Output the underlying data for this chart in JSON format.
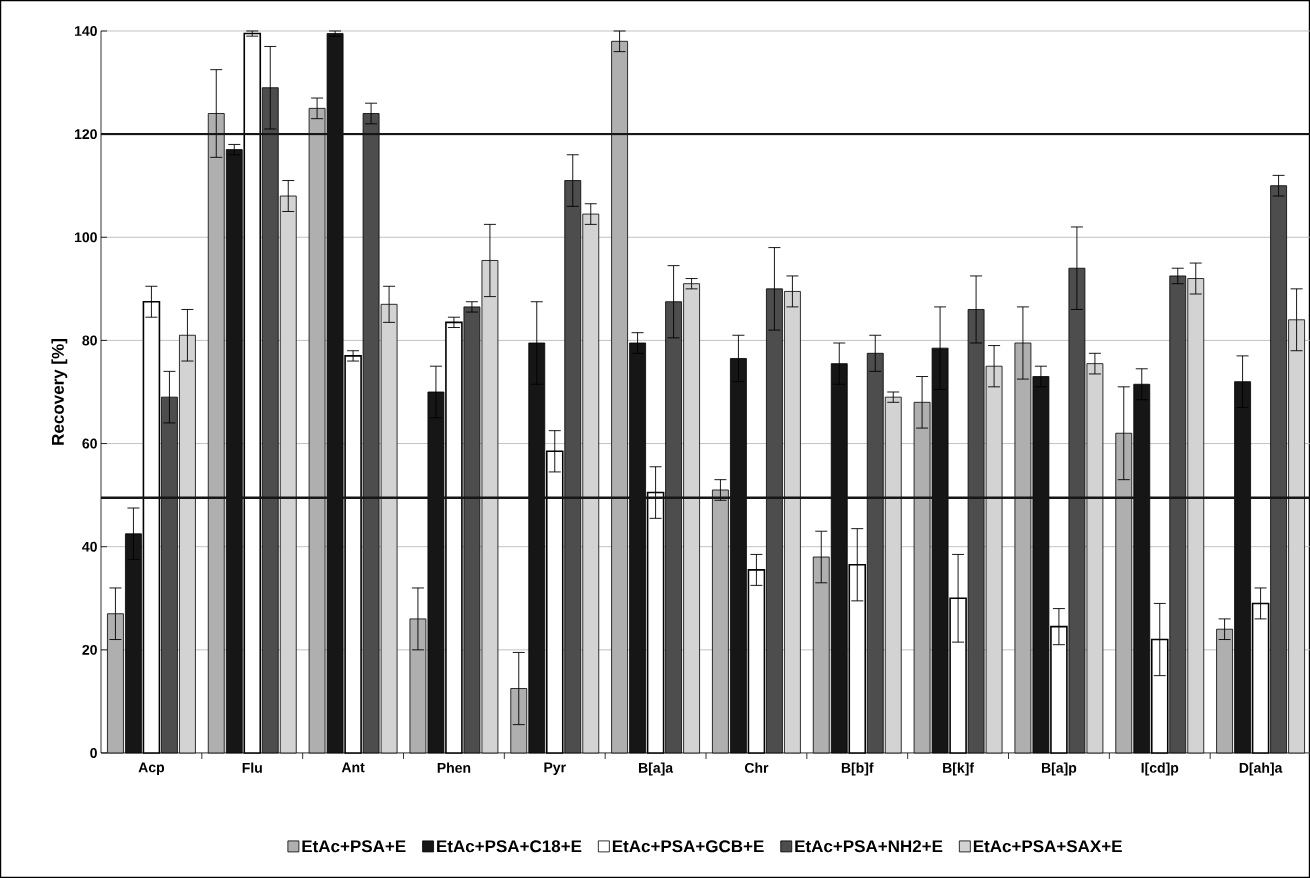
{
  "chart_data": {
    "type": "bar",
    "ylabel": "Recovery [%]",
    "categories": [
      "Acp",
      "Flu",
      "Ant",
      "Phen",
      "Pyr",
      "B[a]a",
      "Chr",
      "B[b]f",
      "B[k]f",
      "B[a]p",
      "I[cd]p",
      "D[ah]a"
    ],
    "series": [
      {
        "name": "EtAc+PSA+E",
        "color": "#afafaf",
        "values": [
          27,
          124,
          125,
          26,
          12.5,
          138,
          51,
          38,
          68,
          79.5,
          62,
          24
        ],
        "errors": [
          5,
          8.5,
          2,
          6,
          7,
          2,
          2,
          5,
          5,
          7,
          9,
          2
        ]
      },
      {
        "name": "EtAc+PSA+C18+E",
        "color": "#161616",
        "values": [
          42.5,
          117,
          139.5,
          70,
          79.5,
          79.5,
          76.5,
          75.5,
          78.5,
          73,
          71.5,
          72
        ],
        "errors": [
          5,
          1,
          0.5,
          5,
          8,
          2,
          4.5,
          4,
          8,
          2,
          3,
          5
        ]
      },
      {
        "name": "EtAc+PSA+GCB+E",
        "color": "#ffffff",
        "values": [
          87.5,
          139.5,
          77,
          83.5,
          58.5,
          50.5,
          35.5,
          36.5,
          30,
          24.5,
          22,
          29
        ],
        "errors": [
          3,
          0.5,
          1,
          1,
          4,
          5,
          3,
          7,
          8.5,
          3.5,
          7,
          3
        ]
      },
      {
        "name": "EtAc+PSA+NH2+E",
        "color": "#4d4d4d",
        "values": [
          69,
          129,
          124,
          86.5,
          111,
          87.5,
          90,
          77.5,
          86,
          94,
          92.5,
          110
        ],
        "errors": [
          5,
          8,
          2,
          1,
          5,
          7,
          8,
          3.5,
          6.5,
          8,
          1.5,
          2
        ]
      },
      {
        "name": "EtAc+PSA+SAX+E",
        "color": "#d3d3d3",
        "values": [
          81,
          108,
          87,
          95.5,
          104.5,
          91,
          89.5,
          69,
          75,
          75.5,
          92,
          84
        ],
        "errors": [
          5,
          3,
          3.5,
          7,
          2,
          1,
          3,
          1,
          4,
          2,
          3,
          6
        ]
      }
    ],
    "ylim": [
      0,
      140
    ],
    "yticks": [
      0,
      20,
      40,
      60,
      80,
      100,
      120,
      140
    ],
    "grid": "y",
    "legend": "bottom",
    "ref_lines": [
      {
        "axis": "y",
        "value": 120,
        "color": "#161616"
      },
      {
        "axis": "y",
        "value": 49.5,
        "color": "#161616"
      }
    ]
  }
}
